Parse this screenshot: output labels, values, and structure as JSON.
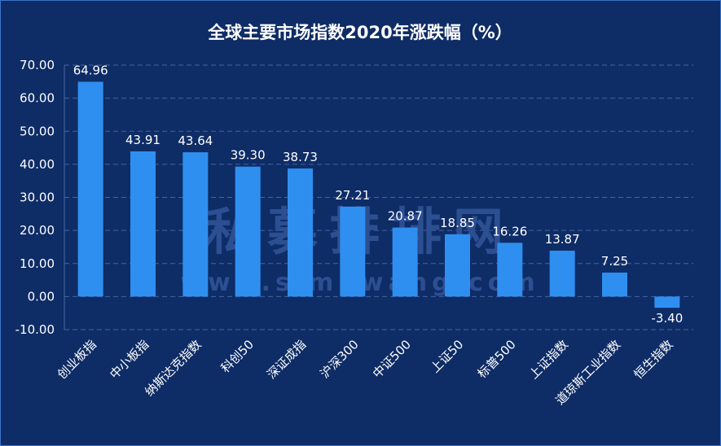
{
  "colors": {
    "bar": "#2f8ff0",
    "background": "#0e2c66",
    "grid": "#46639e",
    "text": "#ffffff"
  },
  "watermark": {
    "text": "私募排排网",
    "url": "www.simuwang.com"
  },
  "chart_data": {
    "type": "bar",
    "title": "全球主要市场指数2020年涨跌幅（%）",
    "xlabel": "",
    "ylabel": "",
    "ylim": [
      -10,
      70
    ],
    "yticks": [
      "70.00",
      "60.00",
      "50.00",
      "40.00",
      "30.00",
      "20.00",
      "10.00",
      "0.00",
      "-10.00"
    ],
    "grid": true,
    "legend": "none",
    "categories": [
      "创业板指",
      "中小板指",
      "纳斯达克指数",
      "科创50",
      "深证成指",
      "沪深300",
      "中证500",
      "上证50",
      "标普500",
      "上证指数",
      "道琼斯工业指数",
      "恒生指数"
    ],
    "values": [
      64.96,
      43.91,
      43.64,
      39.3,
      38.73,
      27.21,
      20.87,
      18.85,
      16.26,
      13.87,
      7.25,
      -3.4
    ],
    "data_labels": [
      "64.96",
      "43.91",
      "43.64",
      "39.30",
      "38.73",
      "27.21",
      "20.87",
      "18.85",
      "16.26",
      "13.87",
      "7.25",
      "-3.40"
    ]
  }
}
